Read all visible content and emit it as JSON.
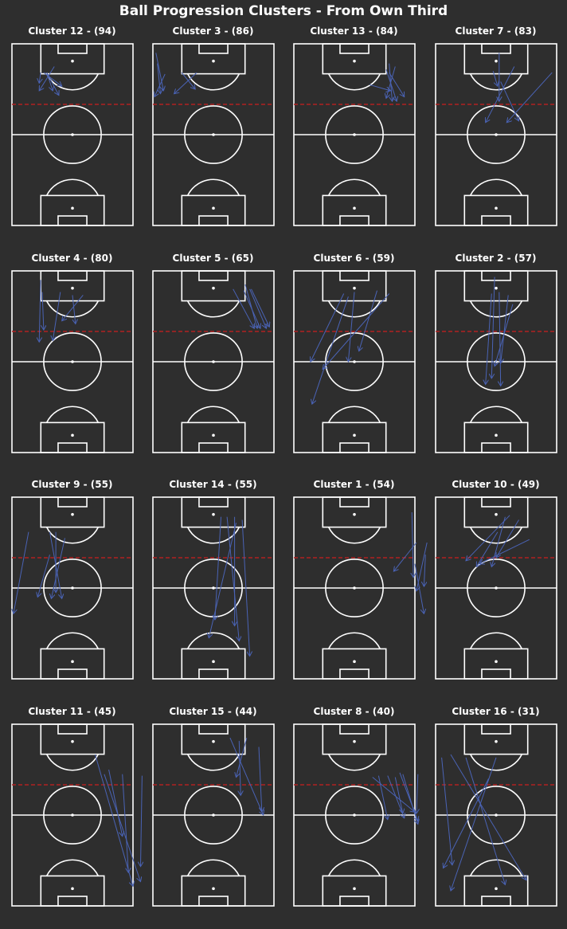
{
  "title": "Ball Progression Clusters - From Own Third",
  "colors": {
    "background": "#2e2e2e",
    "pitch_lines": "#ffffff",
    "arrows": "#4a63b5",
    "third_line": "#b02020"
  },
  "chart_data": {
    "type": "arrow-map",
    "pitch": {
      "length": 120,
      "width": 80,
      "orientation": "vertical",
      "attack": "down",
      "third_line_at": 40
    },
    "clusters": [
      {
        "title": "Cluster 12 - (94)",
        "arrows": [
          [
            23,
            19,
            31,
            34
          ],
          [
            19,
            19,
            18,
            26
          ],
          [
            21,
            19,
            33,
            28
          ],
          [
            28,
            15,
            18,
            31
          ],
          [
            23,
            19,
            27,
            31
          ]
        ]
      },
      {
        "title": "Cluster 3 - (86)",
        "arrows": [
          [
            2,
            6,
            7,
            31
          ],
          [
            8,
            20,
            1,
            35
          ],
          [
            29,
            19,
            14,
            33
          ],
          [
            19,
            19,
            28,
            30
          ],
          [
            3,
            13,
            5,
            33
          ]
        ]
      },
      {
        "title": "Cluster 13 - (84)",
        "arrows": [
          [
            67,
            15,
            61,
            36
          ],
          [
            50,
            27,
            64,
            31
          ],
          [
            63,
            19,
            73,
            35
          ],
          [
            61,
            17,
            68,
            38
          ],
          [
            63,
            13,
            65,
            38
          ]
        ]
      },
      {
        "title": "Cluster 7 - (83)",
        "arrows": [
          [
            42,
            6,
            42,
            38
          ],
          [
            52,
            15,
            33,
            52
          ],
          [
            77,
            19,
            47,
            52
          ],
          [
            38,
            18,
            41,
            28
          ],
          [
            43,
            25,
            55,
            51
          ]
        ]
      },
      {
        "title": "Cluster 4 - (80)",
        "arrows": [
          [
            19,
            6,
            18,
            47
          ],
          [
            20,
            14,
            21,
            39
          ],
          [
            32,
            14,
            27,
            46
          ],
          [
            47,
            16,
            33,
            33
          ],
          [
            40,
            16,
            42,
            35
          ]
        ]
      },
      {
        "title": "Cluster 5 - (65)",
        "arrows": [
          [
            53,
            12,
            67,
            38
          ],
          [
            60,
            13,
            71,
            38
          ],
          [
            65,
            12,
            77,
            37
          ],
          [
            64,
            12,
            75,
            38
          ],
          [
            61,
            9,
            69,
            38
          ]
        ]
      },
      {
        "title": "Cluster 6 - (59)",
        "arrows": [
          [
            63,
            15,
            19,
            65
          ],
          [
            33,
            15,
            11,
            60
          ],
          [
            55,
            13,
            43,
            53
          ],
          [
            36,
            17,
            12,
            88
          ],
          [
            40,
            14,
            36,
            60
          ]
        ]
      },
      {
        "title": "Cluster 2 - (57)",
        "arrows": [
          [
            37,
            15,
            33,
            75
          ],
          [
            39,
            4,
            37,
            71
          ],
          [
            51,
            22,
            39,
            63
          ],
          [
            42,
            14,
            43,
            76
          ],
          [
            48,
            16,
            43,
            61
          ]
        ]
      },
      {
        "title": "Cluster 9 - (55)",
        "arrows": [
          [
            11,
            23,
            1,
            77
          ],
          [
            35,
            27,
            26,
            67
          ],
          [
            29,
            23,
            29,
            63
          ],
          [
            25,
            38,
            17,
            66
          ],
          [
            25,
            23,
            33,
            67
          ]
        ]
      },
      {
        "title": "Cluster 14 - (55)",
        "arrows": [
          [
            55,
            17,
            37,
            93
          ],
          [
            49,
            13,
            57,
            95
          ],
          [
            45,
            13,
            41,
            81
          ],
          [
            54,
            13,
            54,
            85
          ],
          [
            59,
            15,
            64,
            105
          ]
        ]
      },
      {
        "title": "Cluster 1 - (54)",
        "arrows": [
          [
            78,
            10,
            79,
            53
          ],
          [
            81,
            30,
            66,
            49
          ],
          [
            88,
            30,
            81,
            62
          ],
          [
            87,
            38,
            86,
            59
          ],
          [
            80,
            44,
            86,
            77
          ]
        ]
      },
      {
        "title": "Cluster 10 - (49)",
        "arrows": [
          [
            46,
            13,
            37,
            46
          ],
          [
            49,
            12,
            20,
            42
          ],
          [
            62,
            28,
            29,
            44
          ],
          [
            55,
            15,
            40,
            40
          ],
          [
            41,
            23,
            27,
            46
          ]
        ]
      },
      {
        "title": "Cluster 11 - (45)",
        "arrows": [
          [
            55,
            20,
            80,
            107
          ],
          [
            64,
            30,
            73,
            74
          ],
          [
            61,
            33,
            85,
            104
          ],
          [
            73,
            33,
            77,
            98
          ],
          [
            86,
            34,
            85,
            94
          ]
        ]
      },
      {
        "title": "Cluster 15 - (44)",
        "arrows": [
          [
            62,
            9,
            55,
            35
          ],
          [
            51,
            9,
            73,
            60
          ],
          [
            57,
            11,
            58,
            47
          ],
          [
            70,
            15,
            72,
            58
          ]
        ]
      },
      {
        "title": "Cluster 8 - (40)",
        "arrows": [
          [
            52,
            35,
            80,
            58
          ],
          [
            56,
            34,
            62,
            63
          ],
          [
            62,
            34,
            73,
            62
          ],
          [
            67,
            35,
            72,
            59
          ],
          [
            82,
            33,
            81,
            59
          ],
          [
            70,
            32,
            82,
            64
          ],
          [
            72,
            33,
            82,
            66
          ]
        ]
      },
      {
        "title": "Cluster 16 - (31)",
        "arrows": [
          [
            4,
            22,
            11,
            93
          ],
          [
            10,
            20,
            60,
            103
          ],
          [
            40,
            22,
            10,
            110
          ],
          [
            35,
            36,
            5,
            95
          ],
          [
            20,
            22,
            46,
            106
          ]
        ]
      }
    ]
  }
}
